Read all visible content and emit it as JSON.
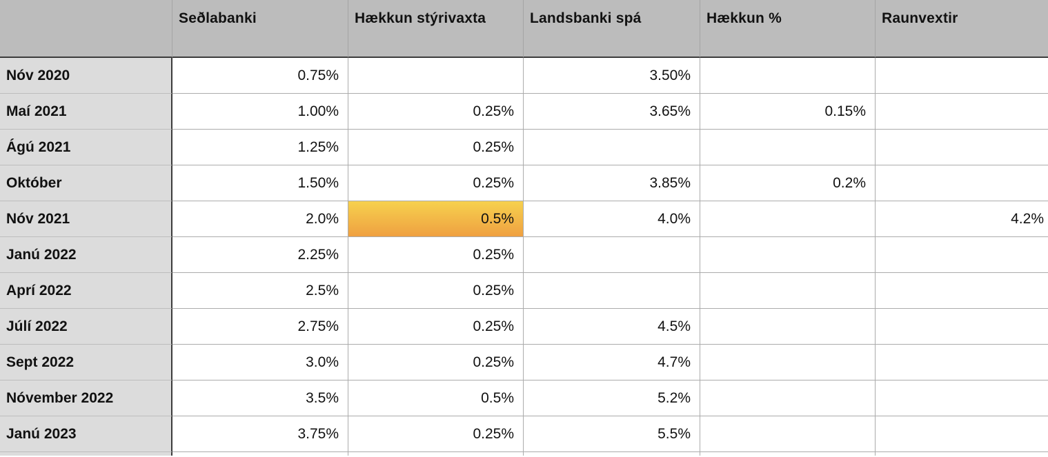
{
  "table": {
    "columns": [
      {
        "label": ""
      },
      {
        "label": "Seðlabanki"
      },
      {
        "label": "Hækkun stýrivaxta"
      },
      {
        "label": "Landsbanki spá"
      },
      {
        "label": "Hækkun %"
      },
      {
        "label": "Raunvextir"
      }
    ],
    "rows": [
      {
        "label": "Nóv 2020",
        "cells": [
          "0.75%",
          "",
          "3.50%",
          "",
          ""
        ]
      },
      {
        "label": "Maí 2021",
        "cells": [
          "1.00%",
          "0.25%",
          "3.65%",
          "0.15%",
          ""
        ]
      },
      {
        "label": "Ágú 2021",
        "cells": [
          "1.25%",
          "0.25%",
          "",
          "",
          ""
        ]
      },
      {
        "label": "Október",
        "cells": [
          "1.50%",
          "0.25%",
          "3.85%",
          "0.2%",
          ""
        ]
      },
      {
        "label": "Nóv 2021",
        "cells": [
          "2.0%",
          "0.5%",
          "4.0%",
          "",
          "4.2%"
        ],
        "highlight_cell": 1
      },
      {
        "label": "Janú 2022",
        "cells": [
          "2.25%",
          "0.25%",
          "",
          "",
          ""
        ]
      },
      {
        "label": "Aprí 2022",
        "cells": [
          "2.5%",
          "0.25%",
          "",
          "",
          ""
        ]
      },
      {
        "label": "Júlí 2022",
        "cells": [
          "2.75%",
          "0.25%",
          "4.5%",
          "",
          ""
        ]
      },
      {
        "label": "Sept 2022",
        "cells": [
          "3.0%",
          "0.25%",
          "4.7%",
          "",
          ""
        ]
      },
      {
        "label": "Nóvember 2022",
        "cells": [
          "3.5%",
          "0.5%",
          "5.2%",
          "",
          ""
        ]
      },
      {
        "label": "Janú 2023",
        "cells": [
          "3.75%",
          "0.25%",
          "5.5%",
          "",
          ""
        ]
      }
    ]
  },
  "colors": {
    "header_bg": "#bcbcbc",
    "label_bg": "#dcdcdc",
    "grid_line": "#ababab",
    "dark_border": "#3b3b3b",
    "highlight_top": "#f6d14e",
    "highlight_bottom": "#efa041"
  }
}
